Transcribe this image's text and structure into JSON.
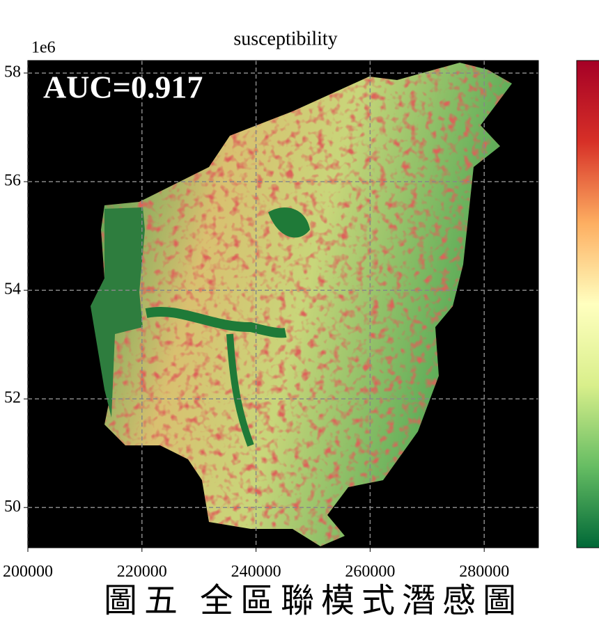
{
  "chart_data": {
    "type": "map",
    "title": "susceptibility",
    "offset_label": "1e6",
    "annotation": "AUC=0.917",
    "caption": "圖五 全區聯模式潛感圖",
    "xlim": [
      200000,
      289500
    ],
    "xticks": [
      200000,
      220000,
      240000,
      260000,
      280000
    ],
    "ylim": [
      2492600,
      2582300
    ],
    "yticks": [
      {
        "value": 2500000,
        "label": "50"
      },
      {
        "value": 2520000,
        "label": "52"
      },
      {
        "value": 2540000,
        "label": "54"
      },
      {
        "value": 2560000,
        "label": "56"
      },
      {
        "value": 2580000,
        "label": "58"
      }
    ],
    "grid": true,
    "colormap": [
      "#006837",
      "#66bd63",
      "#d9ef8b",
      "#ffffbf",
      "#fdae61",
      "#d73027",
      "#a50026"
    ]
  }
}
